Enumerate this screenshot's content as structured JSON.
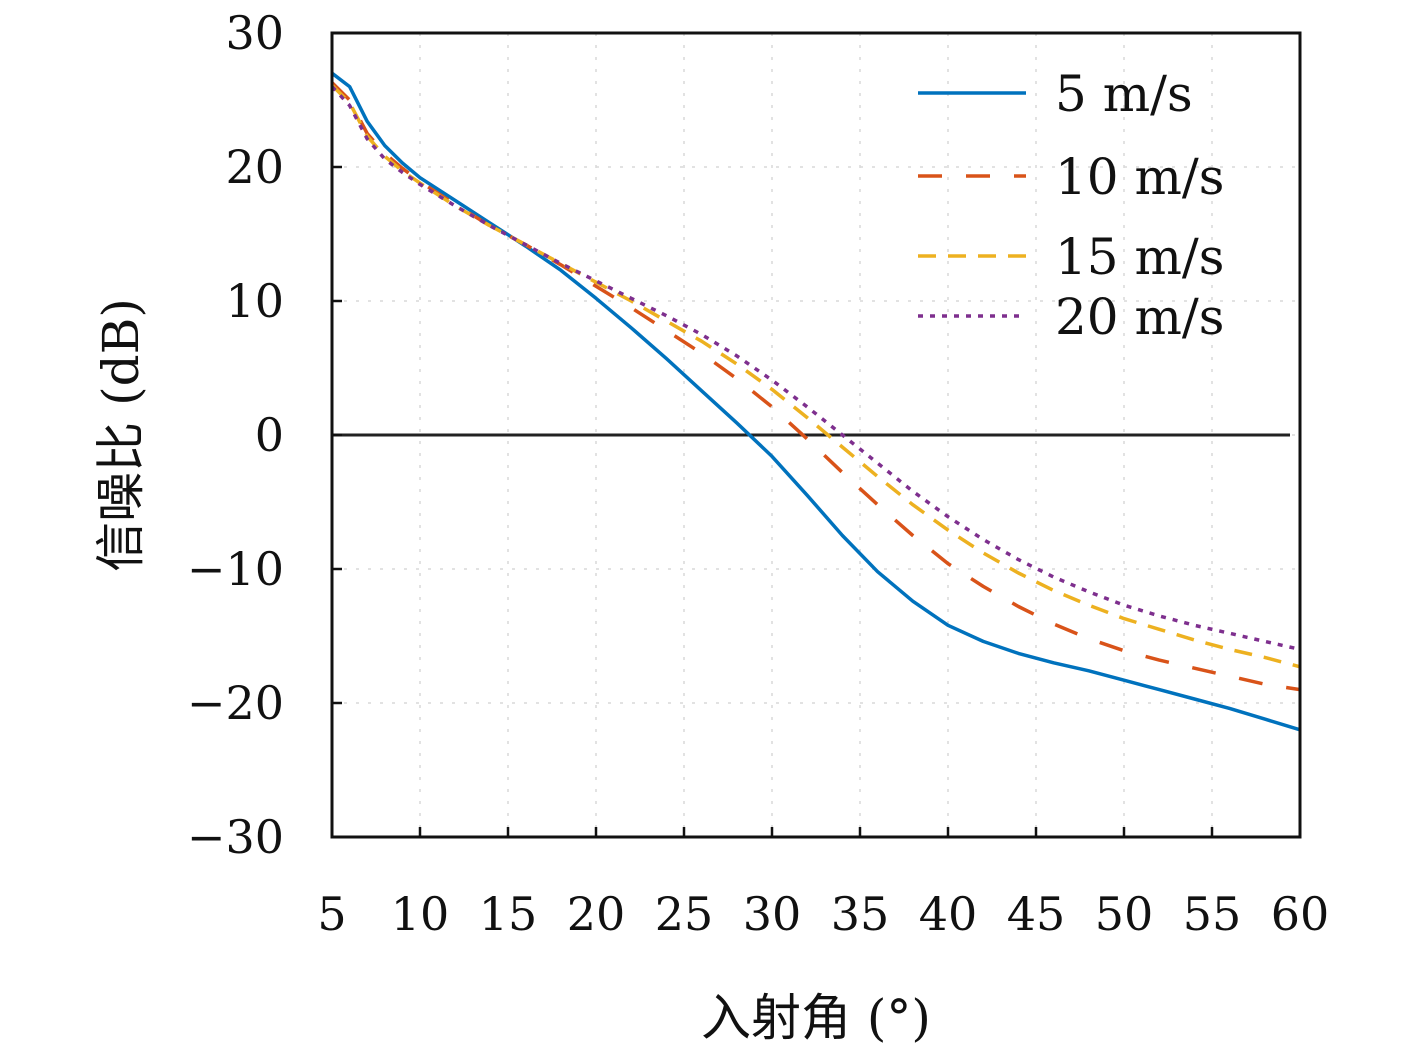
{
  "chart_data": {
    "type": "line",
    "xlabel": "入射角 (°)",
    "ylabel": "信噪比 (dB)",
    "xlim": [
      5,
      60
    ],
    "ylim": [
      -30,
      30
    ],
    "x_ticks": [
      5,
      10,
      15,
      20,
      25,
      30,
      35,
      40,
      45,
      50,
      55,
      60
    ],
    "y_ticks": [
      30,
      20,
      10,
      0,
      -10,
      -20,
      -30
    ],
    "y_tick_labels": [
      "30",
      "20",
      "10",
      "0",
      "−10",
      "−20",
      "−30"
    ],
    "grid": true,
    "legend_position": "top-right",
    "reference_line": {
      "y": 0,
      "color": "#222222"
    },
    "x": [
      5,
      6,
      7,
      8,
      9,
      10,
      12,
      14,
      16,
      18,
      20,
      22,
      24,
      26,
      28,
      30,
      32,
      34,
      36,
      38,
      40,
      42,
      44,
      46,
      48,
      50,
      52,
      54,
      56,
      58,
      60
    ],
    "series": [
      {
        "name": "5 m/s",
        "color": "#0072BD",
        "dash": "solid",
        "values": [
          27.0,
          26.0,
          23.4,
          21.6,
          20.3,
          19.2,
          17.5,
          15.8,
          14.1,
          12.3,
          10.2,
          8.0,
          5.7,
          3.3,
          0.9,
          -1.6,
          -4.5,
          -7.5,
          -10.2,
          -12.4,
          -14.2,
          -15.4,
          -16.3,
          -17.0,
          -17.6,
          -18.3,
          -19.0,
          -19.7,
          -20.4,
          -21.2,
          -22.0
        ]
      },
      {
        "name": "10 m/s",
        "color": "#D95319",
        "dash": "long-dash",
        "values": [
          26.3,
          25.0,
          22.5,
          21.0,
          19.9,
          18.9,
          17.2,
          15.6,
          14.2,
          12.7,
          11.1,
          9.5,
          7.8,
          6.1,
          4.2,
          2.1,
          -0.3,
          -2.8,
          -5.2,
          -7.5,
          -9.6,
          -11.3,
          -12.8,
          -14.1,
          -15.2,
          -16.1,
          -16.8,
          -17.4,
          -18.0,
          -18.6,
          -19.0
        ]
      },
      {
        "name": "15 m/s",
        "color": "#EDB120",
        "dash": "dash",
        "values": [
          26.1,
          24.8,
          22.3,
          20.8,
          19.7,
          18.8,
          17.1,
          15.6,
          14.2,
          12.8,
          11.4,
          10.0,
          8.5,
          7.0,
          5.3,
          3.4,
          1.3,
          -0.9,
          -3.1,
          -5.2,
          -7.1,
          -8.8,
          -10.3,
          -11.6,
          -12.7,
          -13.7,
          -14.5,
          -15.3,
          -16.0,
          -16.6,
          -17.3
        ]
      },
      {
        "name": "20 m/s",
        "color": "#7E2F8E",
        "dash": "dot",
        "values": [
          26.0,
          24.6,
          22.1,
          20.6,
          19.6,
          18.7,
          17.1,
          15.6,
          14.2,
          12.8,
          11.5,
          10.2,
          8.9,
          7.5,
          5.9,
          4.1,
          2.1,
          0.0,
          -2.1,
          -4.2,
          -6.1,
          -7.8,
          -9.3,
          -10.6,
          -11.7,
          -12.7,
          -13.5,
          -14.2,
          -14.8,
          -15.4,
          -16.0
        ]
      }
    ]
  }
}
